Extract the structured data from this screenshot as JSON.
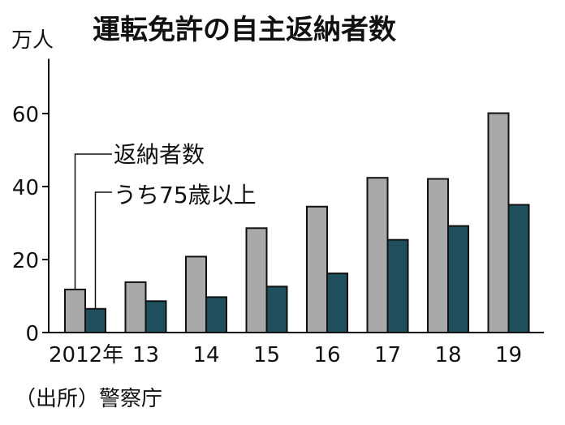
{
  "chart_data": {
    "type": "bar",
    "title": "運転免許の自主返納者数",
    "ylabel": "万人",
    "xlabel": "",
    "source": "（出所）警察庁",
    "categories": [
      "2012年",
      "13",
      "14",
      "15",
      "16",
      "17",
      "18",
      "19"
    ],
    "ylim": [
      0,
      75
    ],
    "yticks": [
      0,
      20,
      40,
      60
    ],
    "grid": false,
    "series": [
      {
        "name": "返納者数",
        "color": "#a9a9a9",
        "values": [
          11.8,
          13.8,
          20.8,
          28.6,
          34.5,
          42.4,
          42.1,
          60.1
        ]
      },
      {
        "name": "うち75歳以上",
        "color": "#1f4e5c",
        "values": [
          6.5,
          8.6,
          9.7,
          12.6,
          16.2,
          25.4,
          29.2,
          35.0
        ]
      }
    ]
  }
}
